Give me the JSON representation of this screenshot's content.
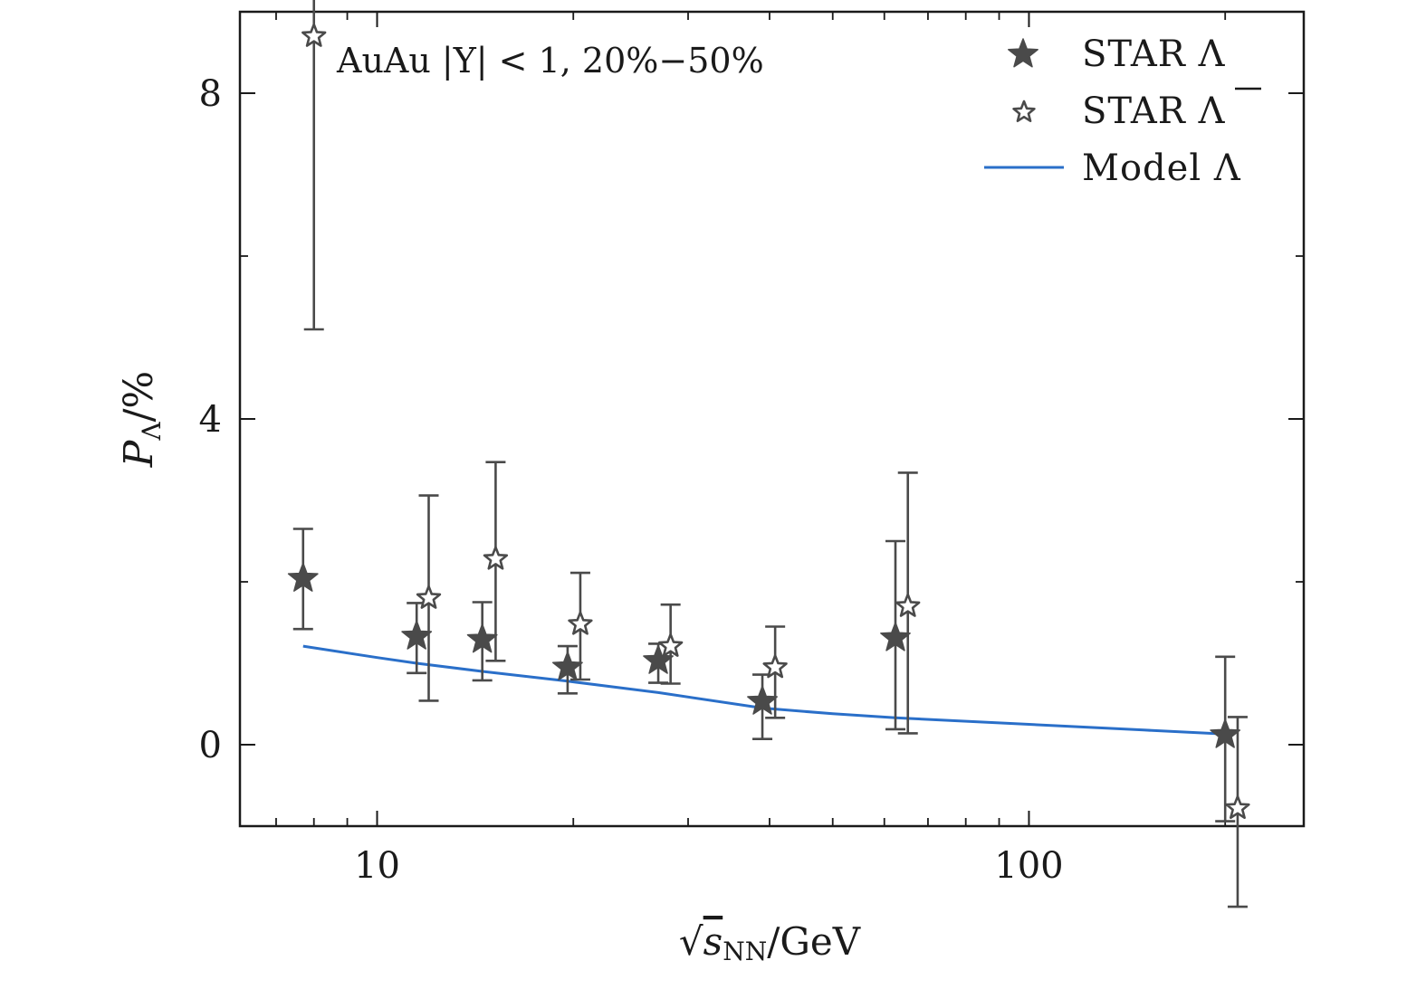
{
  "chart_data": {
    "type": "scatter",
    "title": "",
    "annotation": "AuAu |Y| < 1, 20%−50%",
    "xlabel": "√s_NN/GeV",
    "xlabel_parts": {
      "root": "√",
      "var": "s",
      "sub": "NN",
      "unit": "/GeV"
    },
    "ylabel": "P_Λ/%",
    "ylabel_parts": {
      "var": "P",
      "sub": "Λ",
      "unit": "/%"
    },
    "xscale": "log",
    "xlim": [
      6.16,
      264
    ],
    "ylim": [
      -1.0,
      9.0
    ],
    "xticks": [
      {
        "value": 10,
        "label": "10"
      },
      {
        "value": 100,
        "label": "100"
      }
    ],
    "xminor": [
      7,
      8,
      9,
      20,
      30,
      40,
      50,
      60,
      70,
      80,
      90,
      200
    ],
    "yticks": [
      {
        "value": 0,
        "label": "0"
      },
      {
        "value": 4,
        "label": "4"
      },
      {
        "value": 8,
        "label": "8"
      }
    ],
    "yminor": [
      2,
      6
    ],
    "legend_position": "top-right",
    "colors": {
      "data": "#4a4a4a",
      "model": "#2a6fc9",
      "axis": "#1a1a1a"
    },
    "series": [
      {
        "name": "STAR Λ",
        "legend_label": "STAR Λ",
        "marker": "filled-star",
        "x": [
          7.7,
          11.5,
          14.5,
          19.6,
          27,
          39,
          62.4,
          200
        ],
        "y": [
          2.04,
          1.33,
          1.29,
          0.95,
          1.03,
          0.53,
          1.31,
          0.12
        ],
        "err_low": [
          0.62,
          0.45,
          0.5,
          0.32,
          0.27,
          0.46,
          1.12,
          1.06
        ],
        "err_high": [
          0.61,
          0.41,
          0.46,
          0.26,
          0.21,
          0.33,
          1.19,
          0.96
        ]
      },
      {
        "name": "STAR anti-Λ",
        "legend_label": "STAR ",
        "legend_symbol": "Λ",
        "marker": "open-star",
        "x": [
          8.0,
          12.0,
          15.2,
          20.5,
          28.2,
          40.8,
          65.2,
          209
        ],
        "y": [
          8.7,
          1.8,
          2.28,
          1.48,
          1.21,
          0.95,
          1.7,
          -0.78
        ],
        "err_low": [
          3.6,
          1.26,
          1.25,
          0.68,
          0.46,
          0.62,
          1.56,
          1.21
        ],
        "err_high": [
          3.6,
          1.26,
          1.19,
          0.63,
          0.51,
          0.5,
          1.64,
          1.12
        ]
      },
      {
        "name": "Model Λ",
        "legend_label": "Model Λ",
        "marker": "line",
        "x": [
          7.7,
          10,
          11.5,
          14.5,
          19.6,
          27,
          39,
          50,
          62.4,
          100,
          150,
          200
        ],
        "y": [
          1.21,
          1.07,
          1.0,
          0.9,
          0.78,
          0.64,
          0.45,
          0.38,
          0.33,
          0.25,
          0.18,
          0.13
        ]
      }
    ]
  }
}
